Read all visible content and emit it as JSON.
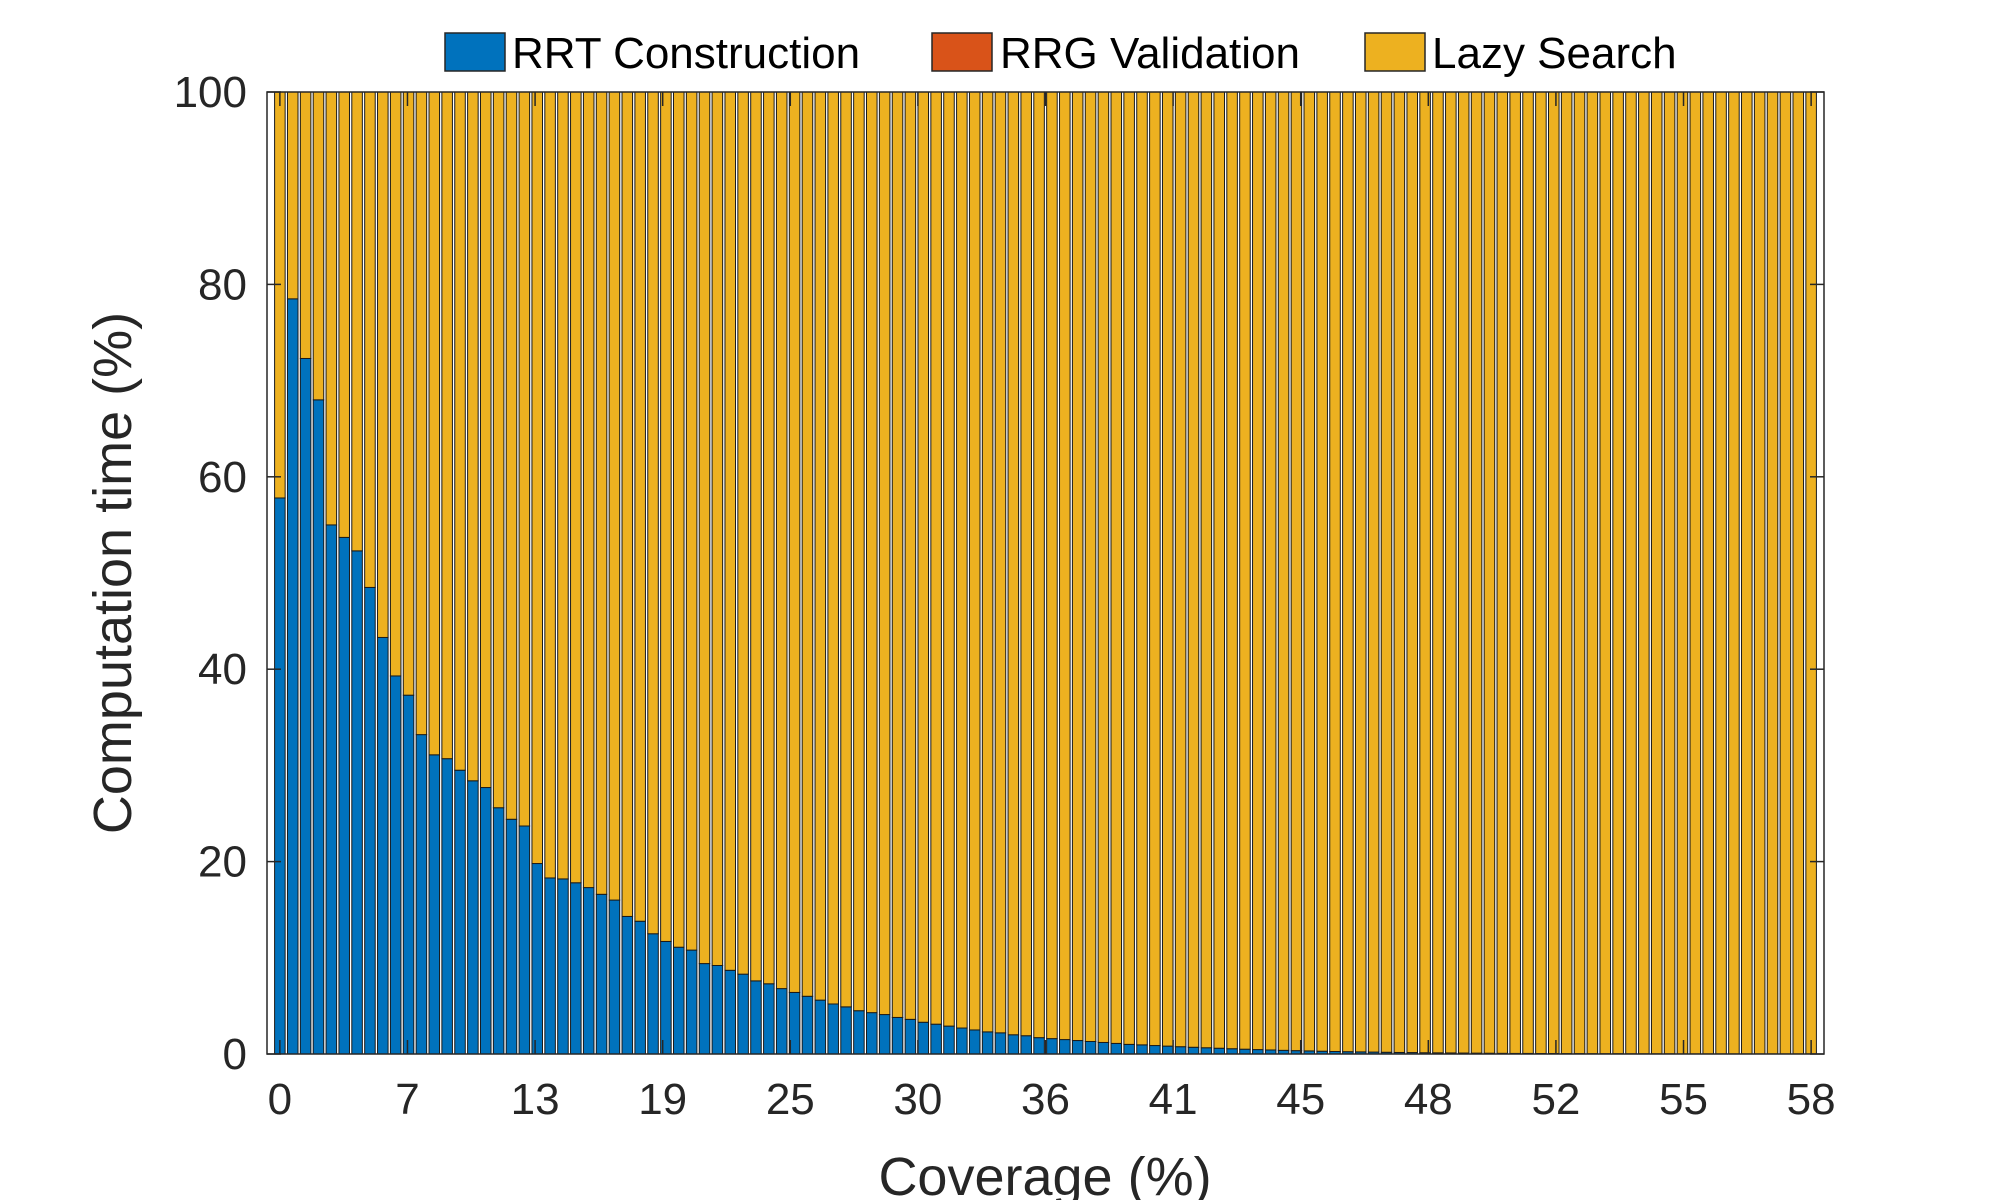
{
  "chart_data": {
    "type": "bar",
    "stacked": true,
    "normalized_percent": true,
    "xlabel": "Coverage (%)",
    "ylabel": "Computation time (%)",
    "ylim": [
      0,
      100
    ],
    "yticks": [
      0,
      20,
      40,
      60,
      80,
      100
    ],
    "yticks_labels": [
      "0",
      "20",
      "40",
      "60",
      "80",
      "100"
    ],
    "xtick_labels": [
      "0",
      "7",
      "13",
      "19",
      "25",
      "30",
      "36",
      "41",
      "45",
      "48",
      "52",
      "55",
      "58"
    ],
    "bar_count": 120,
    "legend_placement": "top (above plot)",
    "grid": false,
    "colors": {
      "rrt_construction": "#0072BD",
      "rrg_validation": "#D95319",
      "lazy_search": "#EDB120",
      "axis": "#262626",
      "bar_edge": "#1a1a1a"
    },
    "series": [
      {
        "name": "RRT Construction",
        "key": "rrt_construction",
        "values": [
          57.8,
          78.5,
          72.3,
          68.0,
          55.0,
          53.7,
          52.3,
          48.5,
          43.3,
          39.3,
          37.3,
          33.2,
          31.1,
          30.7,
          29.5,
          28.4,
          27.7,
          25.6,
          24.4,
          23.7,
          19.8,
          18.3,
          18.2,
          17.8,
          17.3,
          16.6,
          16.0,
          14.3,
          13.8,
          12.5,
          11.7,
          11.1,
          10.8,
          9.4,
          9.2,
          8.7,
          8.3,
          7.6,
          7.3,
          6.8,
          6.4,
          6.0,
          5.6,
          5.2,
          4.9,
          4.5,
          4.3,
          4.1,
          3.8,
          3.6,
          3.3,
          3.1,
          2.9,
          2.7,
          2.5,
          2.3,
          2.2,
          2.0,
          1.9,
          1.7,
          1.6,
          1.5,
          1.4,
          1.3,
          1.2,
          1.1,
          1.0,
          0.95,
          0.88,
          0.82,
          0.76,
          0.7,
          0.65,
          0.6,
          0.55,
          0.5,
          0.46,
          0.42,
          0.38,
          0.35,
          0.32,
          0.29,
          0.26,
          0.24,
          0.22,
          0.2,
          0.18,
          0.16,
          0.15,
          0.13,
          0.12,
          0.11,
          0.1,
          0.09,
          0.08,
          0.07,
          0.06,
          0.06,
          0.05,
          0.05,
          0.04,
          0.04,
          0.03,
          0.03,
          0.03,
          0.02,
          0.02,
          0.02,
          0.02,
          0.01,
          0.01,
          0.01,
          0.01,
          0.01,
          0.01,
          0.01,
          0.01,
          0.01,
          0.01,
          0.01
        ]
      },
      {
        "name": "RRG Validation",
        "key": "rrg_validation",
        "values": [
          0,
          0,
          0,
          0,
          0,
          0,
          0,
          0,
          0,
          0,
          0,
          0,
          0,
          0,
          0,
          0,
          0,
          0,
          0,
          0,
          0,
          0,
          0,
          0,
          0,
          0,
          0,
          0,
          0,
          0,
          0,
          0,
          0,
          0,
          0,
          0,
          0,
          0,
          0,
          0,
          0,
          0,
          0,
          0,
          0,
          0,
          0,
          0,
          0,
          0,
          0,
          0,
          0,
          0,
          0,
          0,
          0,
          0,
          0,
          0,
          0,
          0,
          0,
          0,
          0,
          0,
          0,
          0,
          0,
          0,
          0,
          0,
          0,
          0,
          0,
          0,
          0,
          0,
          0,
          0,
          0,
          0,
          0,
          0,
          0,
          0,
          0,
          0,
          0,
          0,
          0,
          0,
          0,
          0,
          0,
          0,
          0,
          0,
          0,
          0,
          0,
          0,
          0,
          0,
          0,
          0,
          0,
          0,
          0,
          0,
          0,
          0,
          0,
          0,
          0,
          0,
          0,
          0,
          0,
          0
        ]
      },
      {
        "name": "Lazy Search",
        "key": "lazy_search",
        "values": "remainder to 100"
      }
    ]
  }
}
